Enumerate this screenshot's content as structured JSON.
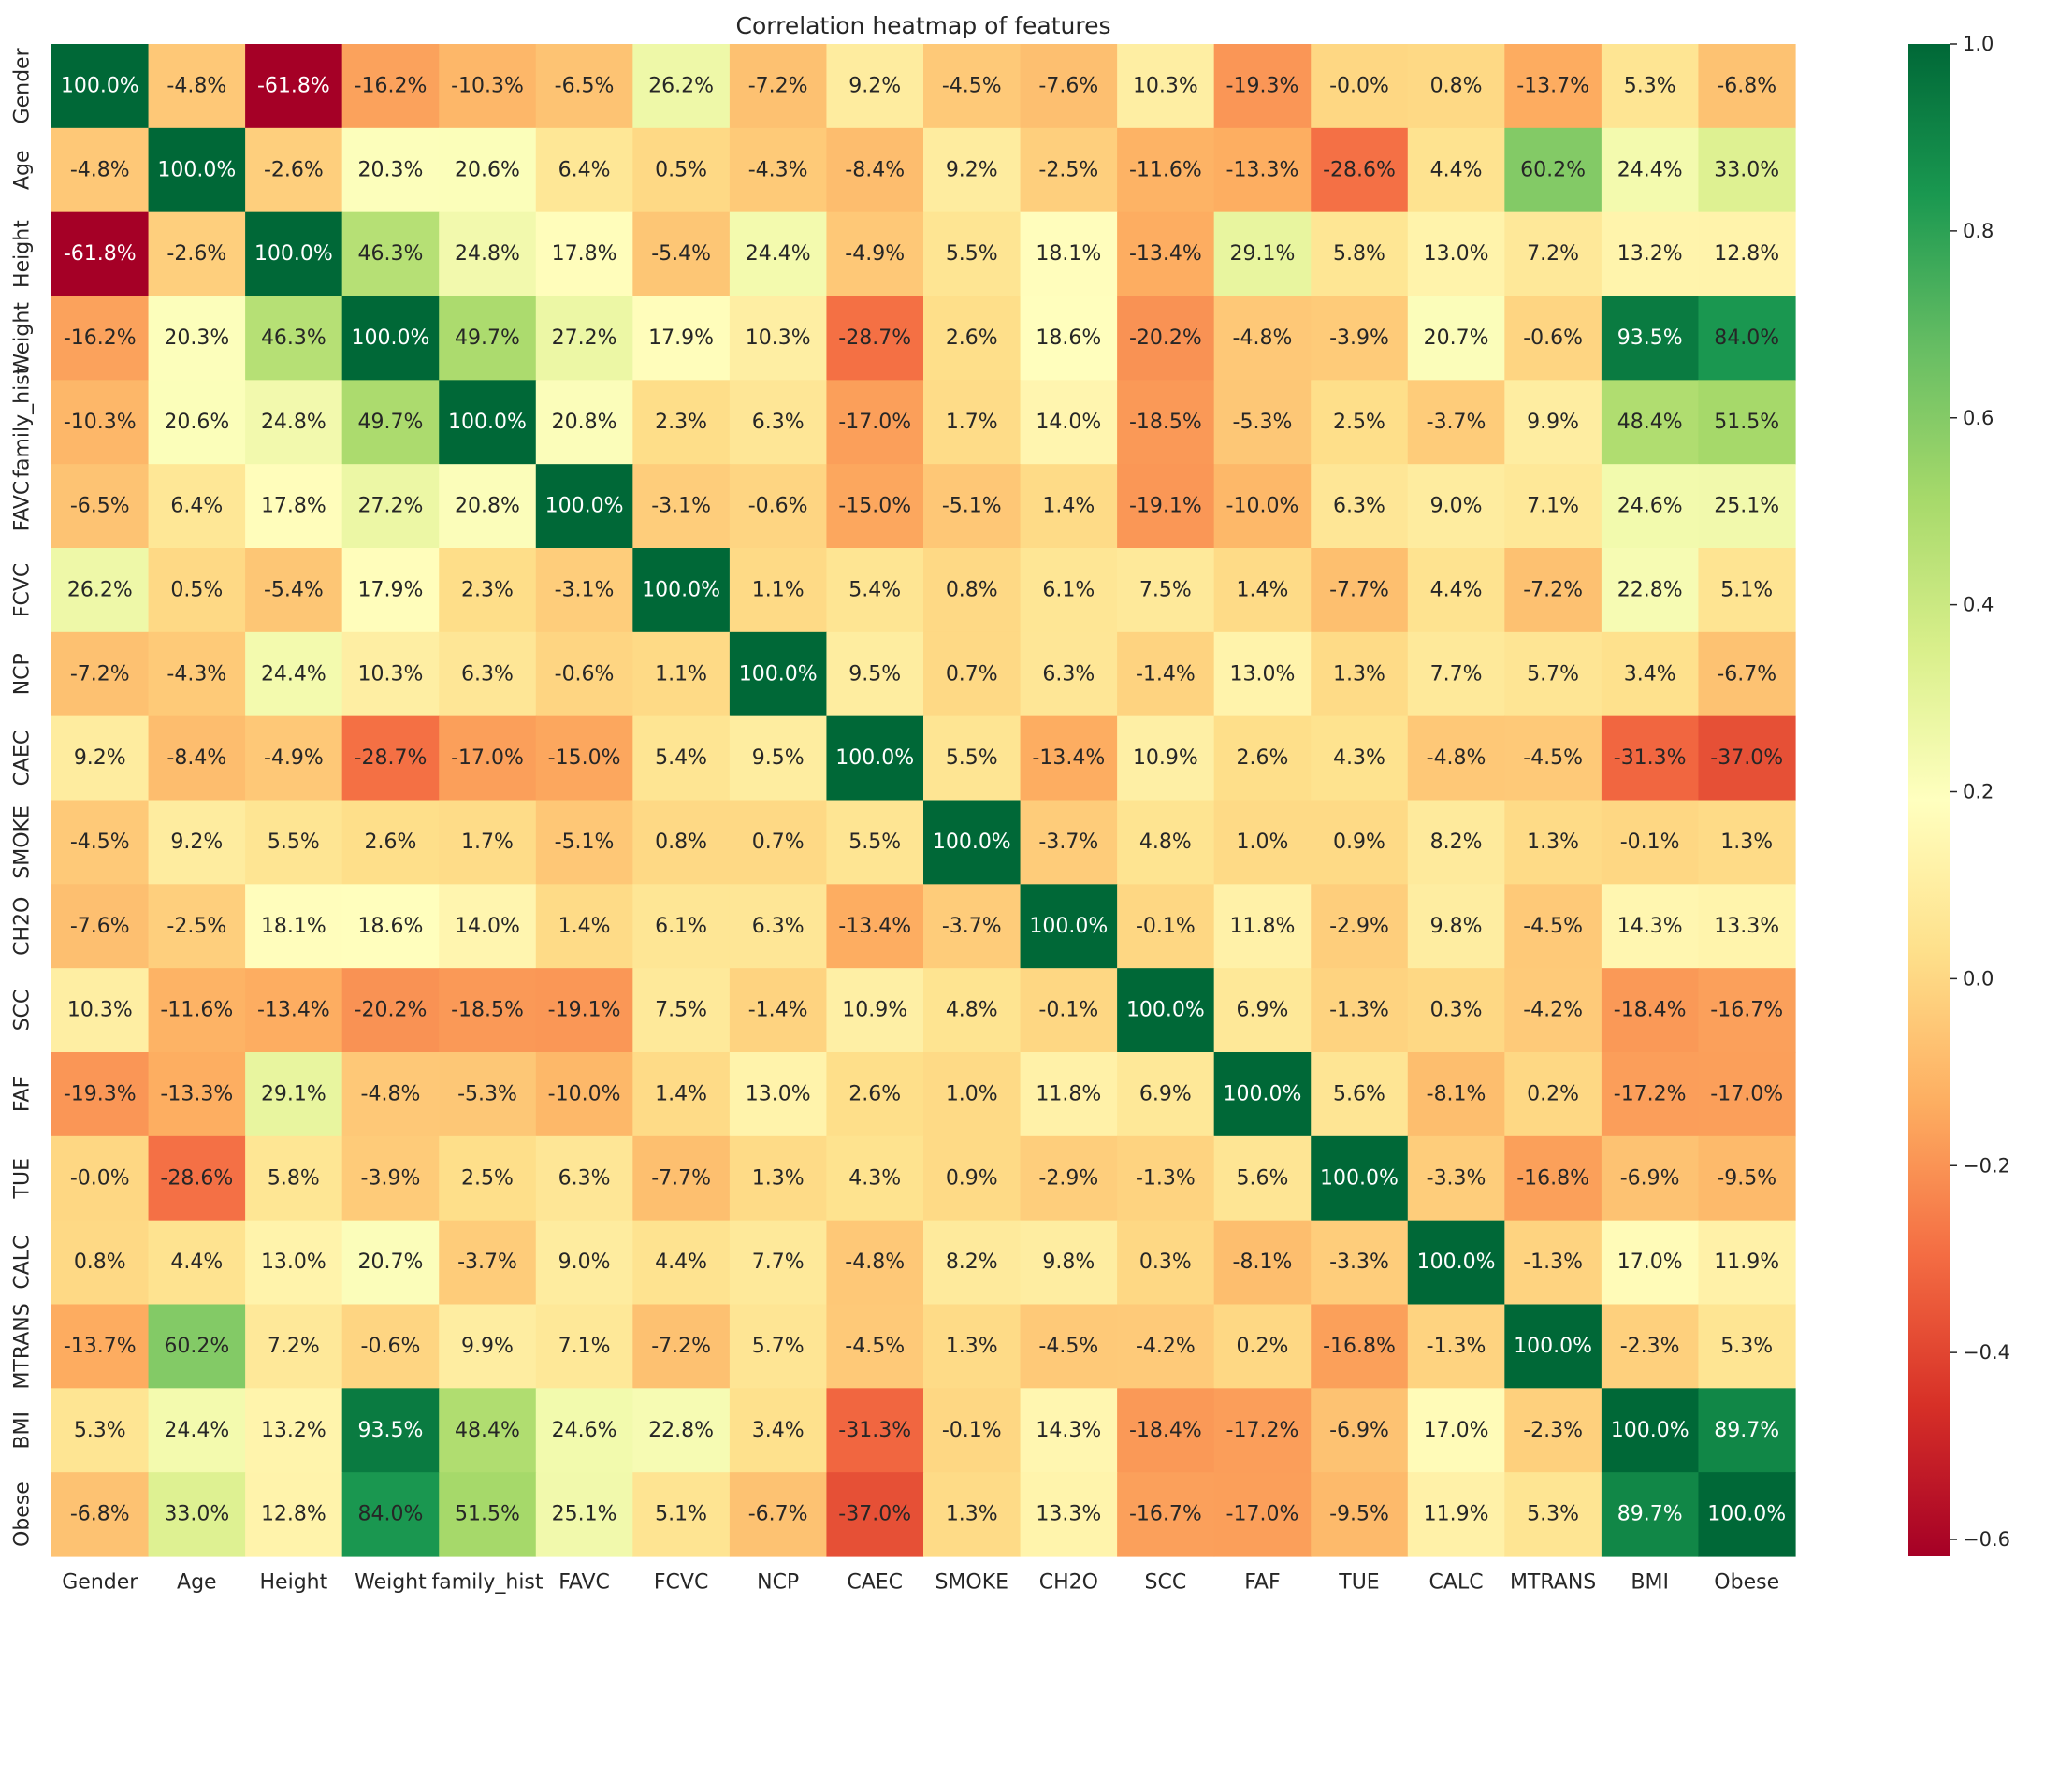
{
  "chart_data": {
    "type": "heatmap",
    "title": "Correlation heatmap of features",
    "labels": [
      "Gender",
      "Age",
      "Height",
      "Weight",
      "family_hist",
      "FAVC",
      "FCVC",
      "NCP",
      "CAEC",
      "SMOKE",
      "CH2O",
      "SCC",
      "FAF",
      "TUE",
      "CALC",
      "MTRANS",
      "BMI",
      "Obese"
    ],
    "values": [
      [
        1.0,
        -0.048,
        -0.618,
        -0.162,
        -0.103,
        -0.065,
        0.262,
        -0.072,
        0.092,
        -0.045,
        -0.076,
        0.103,
        -0.193,
        -0.0,
        0.008,
        -0.137,
        0.053,
        -0.068
      ],
      [
        -0.048,
        1.0,
        -0.026,
        0.203,
        0.206,
        0.064,
        0.005,
        -0.043,
        -0.084,
        0.092,
        -0.025,
        -0.116,
        -0.133,
        -0.286,
        0.044,
        0.602,
        0.244,
        0.33
      ],
      [
        -0.618,
        -0.026,
        1.0,
        0.463,
        0.248,
        0.178,
        -0.054,
        0.244,
        -0.049,
        0.055,
        0.181,
        -0.134,
        0.291,
        0.058,
        0.13,
        0.072,
        0.132,
        0.128
      ],
      [
        -0.162,
        0.203,
        0.463,
        1.0,
        0.497,
        0.272,
        0.179,
        0.103,
        -0.287,
        0.026,
        0.186,
        -0.202,
        -0.048,
        -0.039,
        0.207,
        -0.006,
        0.935,
        0.84
      ],
      [
        -0.103,
        0.206,
        0.248,
        0.497,
        1.0,
        0.208,
        0.023,
        0.063,
        -0.17,
        0.017,
        0.14,
        -0.185,
        -0.053,
        0.025,
        -0.037,
        0.099,
        0.484,
        0.515
      ],
      [
        -0.065,
        0.064,
        0.178,
        0.272,
        0.208,
        1.0,
        -0.031,
        -0.006,
        -0.15,
        -0.051,
        0.014,
        -0.191,
        -0.1,
        0.063,
        0.09,
        0.071,
        0.246,
        0.251
      ],
      [
        0.262,
        0.005,
        -0.054,
        0.179,
        0.023,
        -0.031,
        1.0,
        0.011,
        0.054,
        0.008,
        0.061,
        0.075,
        0.014,
        -0.077,
        0.044,
        -0.072,
        0.228,
        0.051
      ],
      [
        -0.072,
        -0.043,
        0.244,
        0.103,
        0.063,
        -0.006,
        0.011,
        1.0,
        0.095,
        0.007,
        0.063,
        -0.014,
        0.13,
        0.013,
        0.077,
        0.057,
        0.034,
        -0.067
      ],
      [
        0.092,
        -0.084,
        -0.049,
        -0.287,
        -0.17,
        -0.15,
        0.054,
        0.095,
        1.0,
        0.055,
        -0.134,
        0.109,
        0.026,
        0.043,
        -0.048,
        -0.045,
        -0.313,
        -0.37
      ],
      [
        -0.045,
        0.092,
        0.055,
        0.026,
        0.017,
        -0.051,
        0.008,
        0.007,
        0.055,
        1.0,
        -0.037,
        0.048,
        0.01,
        0.009,
        0.082,
        0.013,
        -0.001,
        0.013
      ],
      [
        -0.076,
        -0.025,
        0.181,
        0.186,
        0.14,
        0.014,
        0.061,
        0.063,
        -0.134,
        -0.037,
        1.0,
        -0.001,
        0.118,
        -0.029,
        0.098,
        -0.045,
        0.143,
        0.133
      ],
      [
        0.103,
        -0.116,
        -0.134,
        -0.202,
        -0.185,
        -0.191,
        0.075,
        -0.014,
        0.109,
        0.048,
        -0.001,
        1.0,
        0.069,
        -0.013,
        0.003,
        -0.042,
        -0.184,
        -0.167
      ],
      [
        -0.193,
        -0.133,
        0.291,
        -0.048,
        -0.053,
        -0.1,
        0.014,
        0.13,
        0.026,
        0.01,
        0.118,
        0.069,
        1.0,
        0.056,
        -0.081,
        0.002,
        -0.172,
        -0.17
      ],
      [
        -0.0,
        -0.286,
        0.058,
        -0.039,
        0.025,
        0.063,
        -0.077,
        0.013,
        0.043,
        0.009,
        -0.029,
        -0.013,
        0.056,
        1.0,
        -0.033,
        -0.168,
        -0.069,
        -0.095
      ],
      [
        0.008,
        0.044,
        0.13,
        0.207,
        -0.037,
        0.09,
        0.044,
        0.077,
        -0.048,
        0.082,
        0.098,
        0.003,
        -0.081,
        -0.033,
        1.0,
        -0.013,
        0.17,
        0.119
      ],
      [
        -0.137,
        0.602,
        0.072,
        -0.006,
        0.099,
        0.071,
        -0.072,
        0.057,
        -0.045,
        0.013,
        -0.045,
        -0.042,
        0.002,
        -0.168,
        -0.013,
        1.0,
        -0.023,
        0.053
      ],
      [
        0.053,
        0.244,
        0.132,
        0.935,
        0.484,
        0.246,
        0.228,
        0.034,
        -0.313,
        -0.001,
        0.143,
        -0.184,
        -0.172,
        -0.069,
        0.17,
        -0.023,
        1.0,
        0.897
      ],
      [
        -0.068,
        0.33,
        0.128,
        0.84,
        0.515,
        0.251,
        0.051,
        -0.067,
        -0.37,
        0.013,
        0.133,
        -0.167,
        -0.17,
        -0.095,
        0.119,
        0.053,
        0.897,
        1.0
      ]
    ],
    "cell_labels": [
      [
        "100.0%",
        "-4.8%",
        "-61.8%",
        "-16.2%",
        "-10.3%",
        "-6.5%",
        "26.2%",
        "-7.2%",
        "9.2%",
        "-4.5%",
        "-7.6%",
        "10.3%",
        "-19.3%",
        "-0.0%",
        "0.8%",
        "-13.7%",
        "5.3%",
        "-6.8%"
      ],
      [
        "-4.8%",
        "100.0%",
        "-2.6%",
        "20.3%",
        "20.6%",
        "6.4%",
        "0.5%",
        "-4.3%",
        "-8.4%",
        "9.2%",
        "-2.5%",
        "-11.6%",
        "-13.3%",
        "-28.6%",
        "4.4%",
        "60.2%",
        "24.4%",
        "33.0%"
      ],
      [
        "-61.8%",
        "-2.6%",
        "100.0%",
        "46.3%",
        "24.8%",
        "17.8%",
        "-5.4%",
        "24.4%",
        "-4.9%",
        "5.5%",
        "18.1%",
        "-13.4%",
        "29.1%",
        "5.8%",
        "13.0%",
        "7.2%",
        "13.2%",
        "12.8%"
      ],
      [
        "-16.2%",
        "20.3%",
        "46.3%",
        "100.0%",
        "49.7%",
        "27.2%",
        "17.9%",
        "10.3%",
        "-28.7%",
        "2.6%",
        "18.6%",
        "-20.2%",
        "-4.8%",
        "-3.9%",
        "20.7%",
        "-0.6%",
        "93.5%",
        "84.0%"
      ],
      [
        "-10.3%",
        "20.6%",
        "24.8%",
        "49.7%",
        "100.0%",
        "20.8%",
        "2.3%",
        "6.3%",
        "-17.0%",
        "1.7%",
        "14.0%",
        "-18.5%",
        "-5.3%",
        "2.5%",
        "-3.7%",
        "9.9%",
        "48.4%",
        "51.5%"
      ],
      [
        "-6.5%",
        "6.4%",
        "17.8%",
        "27.2%",
        "20.8%",
        "100.0%",
        "-3.1%",
        "-0.6%",
        "-15.0%",
        "-5.1%",
        "1.4%",
        "-19.1%",
        "-10.0%",
        "6.3%",
        "9.0%",
        "7.1%",
        "24.6%",
        "25.1%"
      ],
      [
        "26.2%",
        "0.5%",
        "-5.4%",
        "17.9%",
        "2.3%",
        "-3.1%",
        "100.0%",
        "1.1%",
        "5.4%",
        "0.8%",
        "6.1%",
        "7.5%",
        "1.4%",
        "-7.7%",
        "4.4%",
        "-7.2%",
        "22.8%",
        "5.1%"
      ],
      [
        "-7.2%",
        "-4.3%",
        "24.4%",
        "10.3%",
        "6.3%",
        "-0.6%",
        "1.1%",
        "100.0%",
        "9.5%",
        "0.7%",
        "6.3%",
        "-1.4%",
        "13.0%",
        "1.3%",
        "7.7%",
        "5.7%",
        "3.4%",
        "-6.7%"
      ],
      [
        "9.2%",
        "-8.4%",
        "-4.9%",
        "-28.7%",
        "-17.0%",
        "-15.0%",
        "5.4%",
        "9.5%",
        "100.0%",
        "5.5%",
        "-13.4%",
        "10.9%",
        "2.6%",
        "4.3%",
        "-4.8%",
        "-4.5%",
        "-31.3%",
        "-37.0%"
      ],
      [
        "-4.5%",
        "9.2%",
        "5.5%",
        "2.6%",
        "1.7%",
        "-5.1%",
        "0.8%",
        "0.7%",
        "5.5%",
        "100.0%",
        "-3.7%",
        "4.8%",
        "1.0%",
        "0.9%",
        "8.2%",
        "1.3%",
        "-0.1%",
        "1.3%"
      ],
      [
        "-7.6%",
        "-2.5%",
        "18.1%",
        "18.6%",
        "14.0%",
        "1.4%",
        "6.1%",
        "6.3%",
        "-13.4%",
        "-3.7%",
        "100.0%",
        "-0.1%",
        "11.8%",
        "-2.9%",
        "9.8%",
        "-4.5%",
        "14.3%",
        "13.3%"
      ],
      [
        "10.3%",
        "-11.6%",
        "-13.4%",
        "-20.2%",
        "-18.5%",
        "-19.1%",
        "7.5%",
        "-1.4%",
        "10.9%",
        "4.8%",
        "-0.1%",
        "100.0%",
        "6.9%",
        "-1.3%",
        "0.3%",
        "-4.2%",
        "-18.4%",
        "-16.7%"
      ],
      [
        "-19.3%",
        "-13.3%",
        "29.1%",
        "-4.8%",
        "-5.3%",
        "-10.0%",
        "1.4%",
        "13.0%",
        "2.6%",
        "1.0%",
        "11.8%",
        "6.9%",
        "100.0%",
        "5.6%",
        "-8.1%",
        "0.2%",
        "-17.2%",
        "-17.0%"
      ],
      [
        "-0.0%",
        "-28.6%",
        "5.8%",
        "-3.9%",
        "2.5%",
        "6.3%",
        "-7.7%",
        "1.3%",
        "4.3%",
        "0.9%",
        "-2.9%",
        "-1.3%",
        "5.6%",
        "100.0%",
        "-3.3%",
        "-16.8%",
        "-6.9%",
        "-9.5%"
      ],
      [
        "0.8%",
        "4.4%",
        "13.0%",
        "20.7%",
        "-3.7%",
        "9.0%",
        "4.4%",
        "7.7%",
        "-4.8%",
        "8.2%",
        "9.8%",
        "0.3%",
        "-8.1%",
        "-3.3%",
        "100.0%",
        "-1.3%",
        "17.0%",
        "11.9%"
      ],
      [
        "-13.7%",
        "60.2%",
        "7.2%",
        "-0.6%",
        "9.9%",
        "7.1%",
        "-7.2%",
        "5.7%",
        "-4.5%",
        "1.3%",
        "-4.5%",
        "-4.2%",
        "0.2%",
        "-16.8%",
        "-1.3%",
        "100.0%",
        "-2.3%",
        "5.3%"
      ],
      [
        "5.3%",
        "24.4%",
        "13.2%",
        "93.5%",
        "48.4%",
        "24.6%",
        "22.8%",
        "3.4%",
        "-31.3%",
        "-0.1%",
        "14.3%",
        "-18.4%",
        "-17.2%",
        "-6.9%",
        "17.0%",
        "-2.3%",
        "100.0%",
        "89.7%"
      ],
      [
        "-6.8%",
        "33.0%",
        "12.8%",
        "84.0%",
        "51.5%",
        "25.1%",
        "5.1%",
        "-6.7%",
        "-37.0%",
        "1.3%",
        "13.3%",
        "-16.7%",
        "-17.0%",
        "-9.5%",
        "11.9%",
        "5.3%",
        "89.7%",
        "100.0%"
      ]
    ],
    "colormap": "RdYlGn",
    "vmin": -0.618,
    "vmax": 1.0,
    "colorbar_ticks": [
      -0.6,
      -0.4,
      -0.2,
      0.0,
      0.2,
      0.4,
      0.6,
      0.8,
      1.0
    ],
    "colorbar_tick_labels": [
      "−0.6",
      "−0.4",
      "−0.2",
      "0.0",
      "0.2",
      "0.4",
      "0.6",
      "0.8",
      "1.0"
    ]
  }
}
